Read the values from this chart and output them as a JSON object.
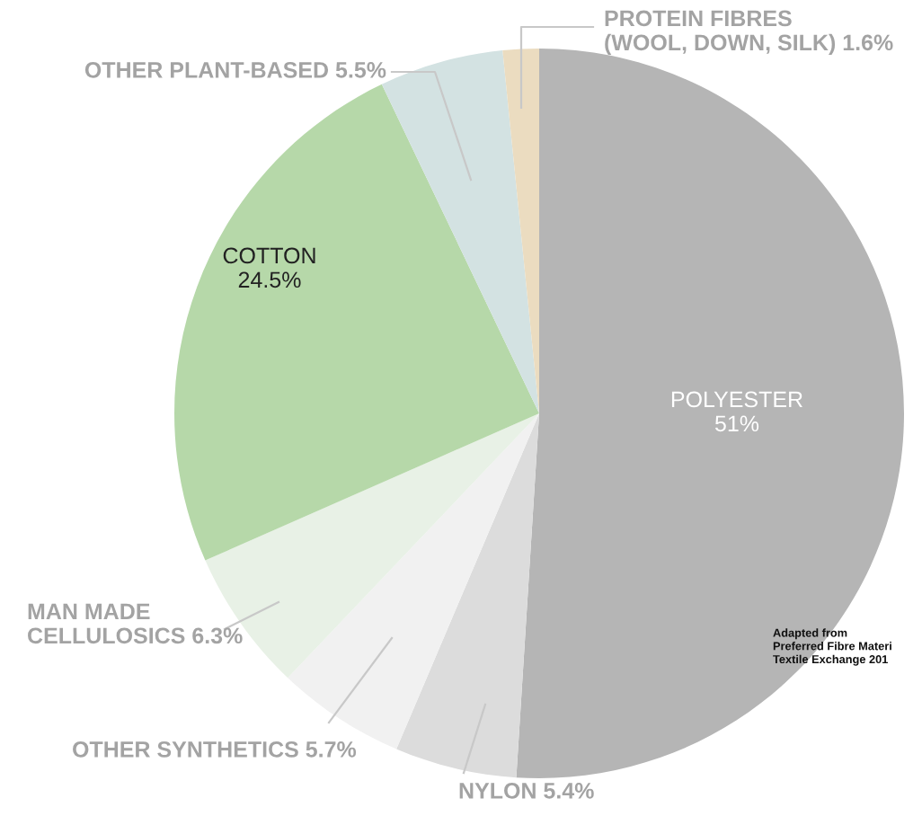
{
  "chart_data": {
    "type": "pie",
    "categories": [
      "POLYESTER",
      "NYLON",
      "OTHER SYNTHETICS",
      "MAN MADE\nCELLULOSICS",
      "COTTON",
      "OTHER PLANT-BASED",
      "PROTEIN FIBRES\n(WOOL, DOWN, SILK)"
    ],
    "values": [
      51,
      5.4,
      5.7,
      6.3,
      24.5,
      5.5,
      1.6
    ],
    "value_labels": [
      "51%",
      "5.4%",
      "5.7%",
      "6.3%",
      "24.5%",
      "5.5%",
      "1.6%"
    ],
    "colors": [
      "#b5b5b5",
      "#dcdcdc",
      "#f1f1f1",
      "#e8f1e6",
      "#b6d8a9",
      "#d3e2e2",
      "#ebdcc0"
    ],
    "annotations": [
      "Adapted from\nPreferred Fibre Materi\nTextile Exchange 201"
    ]
  }
}
